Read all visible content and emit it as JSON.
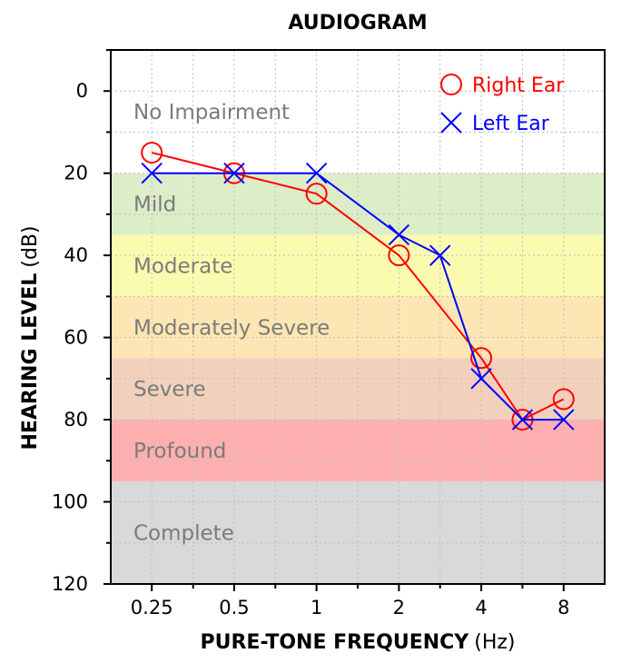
{
  "chart_data": {
    "type": "scatter",
    "title": "AUDIOGRAM",
    "xlabel": "PURE-TONE FREQUENCY",
    "xlabel_unit": "(Hz)",
    "ylabel": "HEARING LEVEL",
    "ylabel_unit": "(dB)",
    "x_scale": "log2",
    "x_ticks": [
      0.25,
      0.5,
      1,
      2,
      4,
      8
    ],
    "x_tick_labels": [
      "0.25",
      "0.5",
      "1",
      "2",
      "4",
      "8"
    ],
    "x_minor_ticks": [
      0.354,
      0.707,
      1.414,
      2.828,
      5.657
    ],
    "xlim": [
      0.177,
      11.3
    ],
    "y_ticks": [
      0,
      20,
      40,
      60,
      80,
      100,
      120
    ],
    "y_tick_labels": [
      "0",
      "20",
      "40",
      "60",
      "80",
      "100",
      "120"
    ],
    "ylim": [
      -10,
      120
    ],
    "y_inverted": true,
    "grid": true,
    "legend_position": "top-right",
    "bands": [
      {
        "label": "No Impairment",
        "from": -10,
        "to": 20,
        "color": "#ffffff"
      },
      {
        "label": "Mild",
        "from": 20,
        "to": 35,
        "color": "#dcedc8"
      },
      {
        "label": "Moderate",
        "from": 35,
        "to": 50,
        "color": "#fbfbb0"
      },
      {
        "label": "Moderately Severe",
        "from": 50,
        "to": 65,
        "color": "#fde6b3"
      },
      {
        "label": "Severe",
        "from": 65,
        "to": 80,
        "color": "#f2d1bc"
      },
      {
        "label": "Profound",
        "from": 80,
        "to": 95,
        "color": "#feb0b0"
      },
      {
        "label": "Complete",
        "from": 95,
        "to": 120,
        "color": "#d9d9d9"
      }
    ],
    "series": [
      {
        "name": "Right Ear",
        "marker": "circle",
        "color": "#ff0000",
        "x": [
          0.25,
          0.5,
          1,
          2,
          4,
          5.657,
          8
        ],
        "y": [
          15,
          20,
          25,
          40,
          65,
          80,
          75
        ]
      },
      {
        "name": "Left Ear",
        "marker": "x",
        "color": "#0000ff",
        "x": [
          0.25,
          0.5,
          1,
          2,
          2.828,
          4,
          5.657,
          8
        ],
        "y": [
          20,
          20,
          20,
          35,
          40,
          70,
          80,
          80
        ]
      }
    ]
  }
}
